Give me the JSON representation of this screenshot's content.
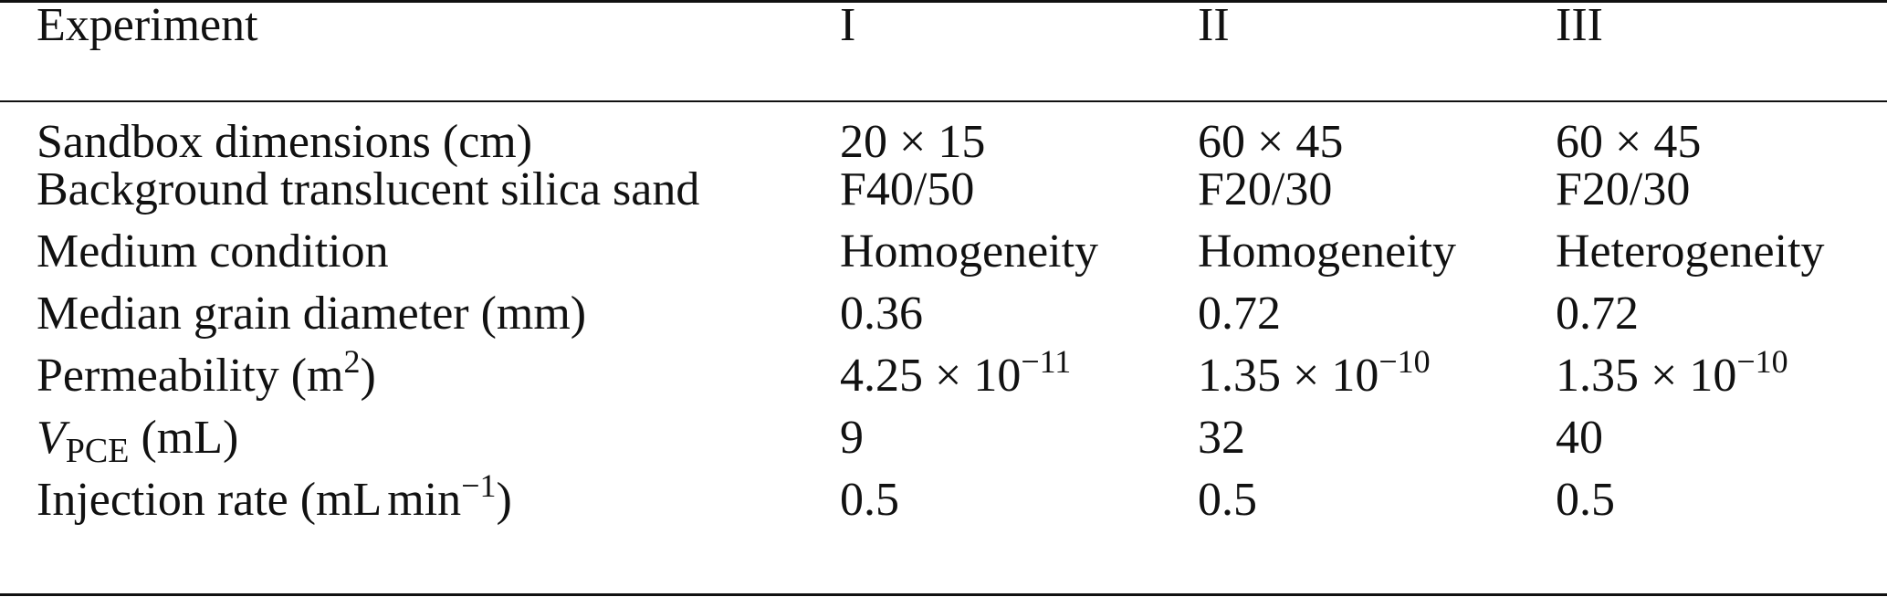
{
  "table": {
    "header": {
      "label": "Experiment",
      "columns": [
        "I",
        "II",
        "III"
      ]
    },
    "rows": [
      {
        "label": "Sandbox dimensions (cm)",
        "values": [
          "20 × 15",
          "60 × 45",
          "60 × 45"
        ]
      },
      {
        "label": "Background translucent silica sand",
        "values": [
          "F40/50",
          "F20/30",
          "F20/30"
        ]
      },
      {
        "label": "Medium condition",
        "values": [
          "Homogeneity",
          "Homogeneity",
          "Heterogeneity"
        ]
      },
      {
        "label": "Median grain diameter (mm)",
        "values": [
          "0.36",
          "0.72",
          "0.72"
        ]
      },
      {
        "label_pre": "Permeability (m",
        "label_sup": "2",
        "label_post": ")",
        "values_base": [
          "4.25 × 10",
          "1.35 × 10",
          "1.35 × 10"
        ],
        "values_exp": [
          "−11",
          "−10",
          "−10"
        ]
      },
      {
        "label_var": "V",
        "label_sub": "PCE",
        "label_post": " (mL)",
        "values": [
          "9",
          "32",
          "40"
        ]
      },
      {
        "label_pre": "Injection rate (mL",
        "label_unit": "min",
        "label_sup": "−1",
        "label_post": ")",
        "values": [
          "0.5",
          "0.5",
          "0.5"
        ]
      }
    ]
  }
}
